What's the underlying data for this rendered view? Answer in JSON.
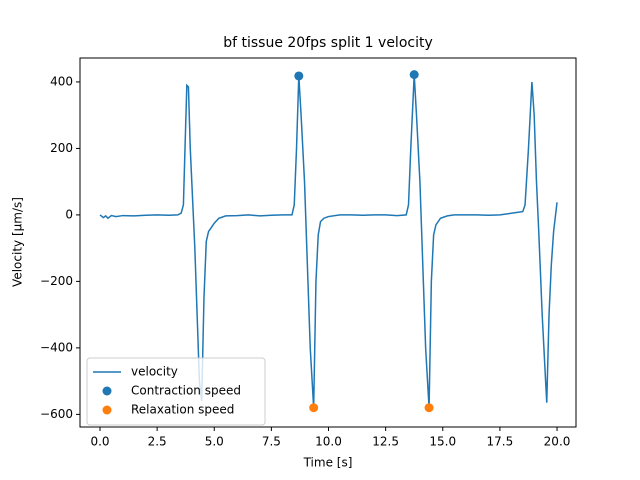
{
  "chart_data": {
    "type": "line",
    "title": "bf tissue 20fps split 1 velocity",
    "x_label": "Time [s]",
    "y_label": "Velocity [µm/s]",
    "xlim": [
      -0.875,
      20.83
    ],
    "ylim": [
      -638,
      472
    ],
    "xticks": [
      {
        "value": 0,
        "label": "0.0"
      },
      2.5,
      {
        "value": 5,
        "label": "5.0"
      },
      7.5,
      {
        "value": 10,
        "label": "10.0"
      },
      12.5,
      {
        "value": 15,
        "label": "15.0"
      },
      17.5,
      {
        "value": 20,
        "label": "20.0"
      }
    ],
    "yticks": [
      {
        "value": -600,
        "label": "−600"
      },
      {
        "value": -400,
        "label": "−400"
      },
      {
        "value": -200,
        "label": "−200"
      },
      0,
      200,
      400
    ],
    "legend": "lower left",
    "series": [
      {
        "name": "velocity",
        "type": "line",
        "color": "#1f77b4",
        "x": [
          0.0,
          0.15,
          0.25,
          0.35,
          0.5,
          0.7,
          1.0,
          1.5,
          2.0,
          2.5,
          3.0,
          3.4,
          3.55,
          3.65,
          3.72,
          3.8,
          3.87,
          3.95,
          4.05,
          4.15,
          4.25,
          4.35,
          4.45,
          4.55,
          4.65,
          4.75,
          4.9,
          5.0,
          5.2,
          5.5,
          6.0,
          6.5,
          7.0,
          7.5,
          8.0,
          8.4,
          8.5,
          8.6,
          8.7,
          8.8,
          8.95,
          9.05,
          9.2,
          9.35,
          9.45,
          9.55,
          9.65,
          9.8,
          10.0,
          10.5,
          11.0,
          11.5,
          12.0,
          12.5,
          13.0,
          13.4,
          13.5,
          13.6,
          13.75,
          13.85,
          14.0,
          14.1,
          14.25,
          14.4,
          14.5,
          14.6,
          14.7,
          14.9,
          15.2,
          15.5,
          16.0,
          16.5,
          17.0,
          17.5,
          18.0,
          18.5,
          18.6,
          18.75,
          18.9,
          19.0,
          19.1,
          19.2,
          19.35,
          19.5,
          19.55,
          19.65,
          19.75,
          19.85,
          20.0
        ],
        "values": [
          0,
          -8,
          -3,
          -10,
          -2,
          -5,
          -2,
          -3,
          -1,
          0,
          -1,
          0,
          5,
          30,
          200,
          390,
          385,
          200,
          50,
          -100,
          -300,
          -500,
          -560,
          -250,
          -80,
          -50,
          -35,
          -25,
          -10,
          -3,
          -2,
          0,
          -3,
          -1,
          0,
          0,
          30,
          200,
          418,
          300,
          100,
          -100,
          -400,
          -580,
          -200,
          -60,
          -20,
          -10,
          -5,
          0,
          0,
          -1,
          0,
          0,
          -2,
          0,
          30,
          200,
          422,
          300,
          100,
          -100,
          -400,
          -580,
          -200,
          -60,
          -30,
          -10,
          -3,
          0,
          0,
          0,
          -1,
          0,
          5,
          10,
          30,
          200,
          400,
          300,
          100,
          -50,
          -300,
          -500,
          -565,
          -300,
          -150,
          -50,
          38
        ]
      },
      {
        "name": "Contraction speed",
        "type": "scatter",
        "color": "#1f77b4",
        "x": [
          8.7,
          13.75
        ],
        "values": [
          418,
          422
        ]
      },
      {
        "name": "Relaxation speed",
        "type": "scatter",
        "color": "#ff7f0e",
        "x": [
          9.35,
          14.4
        ],
        "values": [
          -580,
          -580
        ]
      }
    ]
  }
}
